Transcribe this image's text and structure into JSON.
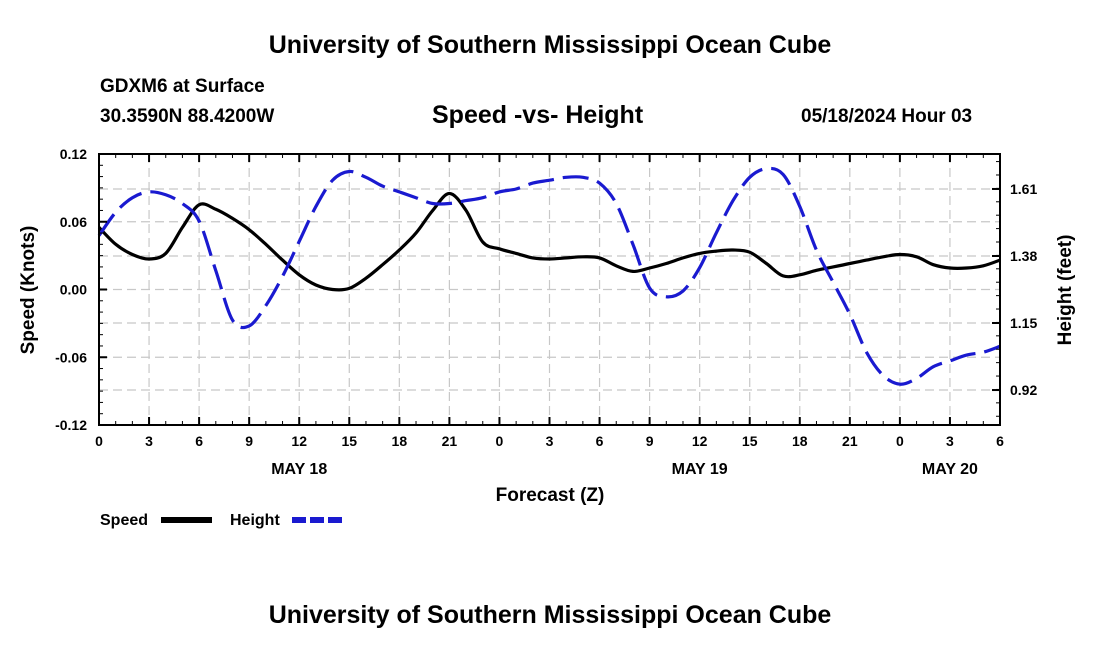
{
  "header": {
    "title_top": "University of Southern Mississippi Ocean Cube",
    "title_bottom": "University of Southern Mississippi Ocean Cube",
    "station": "GDXM6 at Surface",
    "location": "30.3590N  88.4200W",
    "run_time": "05/18/2024 Hour 03"
  },
  "chart_data": {
    "type": "line",
    "title": "Speed -vs- Height",
    "xlabel": "Forecast (Z)",
    "ylabel_left": "Speed (Knots)",
    "ylabel_right": "Height (feet)",
    "x_range_hours": [
      0,
      54
    ],
    "x_tick_labels": [
      "0",
      "3",
      "6",
      "9",
      "12",
      "15",
      "18",
      "21",
      "0",
      "3",
      "6",
      "9",
      "12",
      "15",
      "18",
      "21",
      "0",
      "3",
      "6"
    ],
    "date_labels": [
      {
        "text": "MAY 18",
        "hour": 12
      },
      {
        "text": "MAY 19",
        "hour": 36
      },
      {
        "text": "MAY 20",
        "hour": 51
      }
    ],
    "left_axis": {
      "ylim": [
        -0.12,
        0.12
      ],
      "ticks": [
        "0.12",
        "0.06",
        "0.00",
        "-0.06",
        "-0.12"
      ],
      "tick_values": [
        0.12,
        0.06,
        0.0,
        -0.06,
        -0.12
      ]
    },
    "right_axis": {
      "ylim": [
        0.8,
        1.73
      ],
      "ticks": [
        "1.61",
        "1.38",
        "1.15",
        "0.92"
      ],
      "tick_values": [
        1.61,
        1.38,
        1.15,
        0.92
      ]
    },
    "legend": [
      {
        "label": "Speed",
        "color": "#000000",
        "style": "solid"
      },
      {
        "label": "Height",
        "color": "#1a1ad0",
        "style": "dashed"
      }
    ],
    "series": [
      {
        "name": "Speed",
        "axis": "left",
        "color": "#000000",
        "x": [
          0,
          1,
          2,
          3,
          4,
          5,
          6,
          7,
          8,
          9,
          10,
          11,
          12,
          13,
          14,
          15,
          16,
          17,
          18,
          19,
          20,
          21,
          22,
          23,
          24,
          25,
          26,
          27,
          28,
          29,
          30,
          31,
          32,
          33,
          34,
          35,
          36,
          37,
          38,
          39,
          40,
          41,
          42,
          43,
          44,
          45,
          46,
          47,
          48,
          49,
          50,
          51,
          52,
          53,
          54
        ],
        "values": [
          0.055,
          0.04,
          0.031,
          0.027,
          0.032,
          0.055,
          0.075,
          0.071,
          0.063,
          0.053,
          0.04,
          0.026,
          0.013,
          0.004,
          0.0,
          0.001,
          0.01,
          0.022,
          0.035,
          0.05,
          0.07,
          0.085,
          0.07,
          0.042,
          0.036,
          0.032,
          0.028,
          0.027,
          0.028,
          0.029,
          0.028,
          0.021,
          0.016,
          0.019,
          0.023,
          0.028,
          0.032,
          0.034,
          0.035,
          0.033,
          0.023,
          0.012,
          0.013,
          0.017,
          0.02,
          0.023,
          0.026,
          0.029,
          0.031,
          0.029,
          0.022,
          0.019,
          0.019,
          0.021,
          0.026
        ]
      },
      {
        "name": "Height",
        "axis": "right",
        "color": "#1a1ad0",
        "x": [
          0,
          1,
          2,
          3,
          4,
          5,
          6,
          7,
          8,
          9,
          10,
          11,
          12,
          13,
          14,
          15,
          16,
          17,
          18,
          19,
          20,
          21,
          22,
          23,
          24,
          25,
          26,
          27,
          28,
          29,
          30,
          31,
          32,
          33,
          34,
          35,
          36,
          37,
          38,
          39,
          40,
          41,
          42,
          43,
          44,
          45,
          46,
          47,
          48,
          49,
          50,
          51,
          52,
          53,
          54
        ],
        "values": [
          1.45,
          1.53,
          1.58,
          1.6,
          1.59,
          1.56,
          1.5,
          1.33,
          1.16,
          1.14,
          1.21,
          1.31,
          1.43,
          1.55,
          1.64,
          1.67,
          1.65,
          1.62,
          1.6,
          1.58,
          1.56,
          1.56,
          1.57,
          1.58,
          1.6,
          1.61,
          1.63,
          1.64,
          1.65,
          1.65,
          1.63,
          1.56,
          1.42,
          1.27,
          1.24,
          1.26,
          1.34,
          1.46,
          1.57,
          1.65,
          1.68,
          1.66,
          1.55,
          1.4,
          1.29,
          1.18,
          1.05,
          0.97,
          0.94,
          0.96,
          1.0,
          1.02,
          1.04,
          1.05,
          1.07
        ]
      }
    ]
  }
}
